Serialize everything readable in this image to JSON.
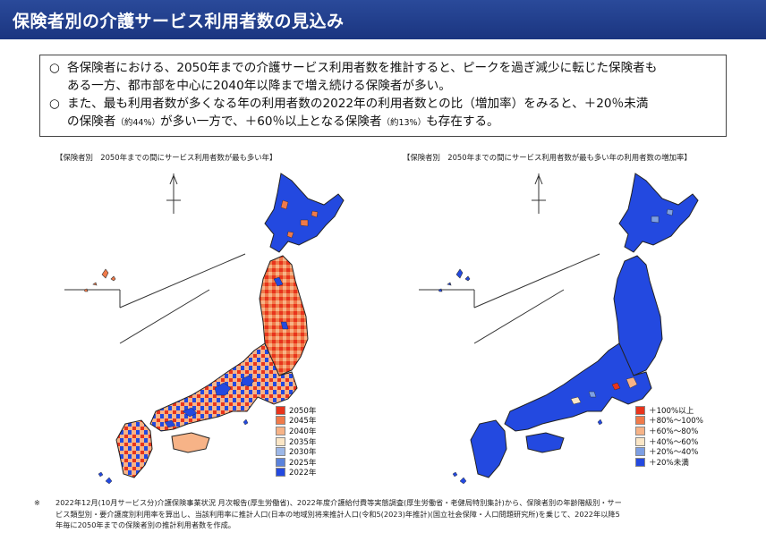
{
  "header": {
    "title": "保険者別の介護サービス利用者数の見込み"
  },
  "summary": {
    "bullet_mark": "○",
    "line1": "各保険者における、2050年までの介護サービス利用者数を推計すると、ピークを過ぎ減少に転じた保険者も",
    "line2": "ある一方、都市部を中心に2040年以降まで増え続ける保険者が多い。",
    "line3": "また、最も利用者数が多くなる年の利用者数の2022年の利用者数との比（増加率）をみると、＋20％未満",
    "line4_a": "の保険者",
    "line4_b": "（約44%）",
    "line4_c": "が多い一方で、＋60％以上となる保険者",
    "line4_d": "（約13%）",
    "line4_e": "も存在する。"
  },
  "left_map": {
    "title": "【保険者別　2050年までの間にサービス利用者数が最も多い年】",
    "legend": [
      {
        "label": "2050年",
        "color": "#e8341c"
      },
      {
        "label": "2045年",
        "color": "#f07a4a"
      },
      {
        "label": "2040年",
        "color": "#f7b387"
      },
      {
        "label": "2035年",
        "color": "#fbe6c6"
      },
      {
        "label": "2030年",
        "color": "#9db8e8"
      },
      {
        "label": "2025年",
        "color": "#5a82dc"
      },
      {
        "label": "2022年",
        "color": "#2349e0"
      }
    ]
  },
  "right_map": {
    "title": "【保険者別　2050年までの間にサービス利用者数が最も多い年の利用者数の増加率】",
    "legend": [
      {
        "label": "＋100%以上",
        "color": "#e8341c"
      },
      {
        "label": "＋80%～100%",
        "color": "#f07a4a"
      },
      {
        "label": "＋60%～80%",
        "color": "#f7b387"
      },
      {
        "label": "＋40%～60%",
        "color": "#fbe6c6"
      },
      {
        "label": "＋20%～40%",
        "color": "#7d9fe4"
      },
      {
        "label": "＋20%未満",
        "color": "#2349e0"
      }
    ]
  },
  "footnote": {
    "mark": "※",
    "line1": "2022年12月(10月サービス分)介護保険事業状況 月次報告(厚生労働省)、2022年度介護給付費等実態調査(厚生労働省・老健局特別集計)から、保険者別の年齢階級別・サー",
    "line2": "ビス類型別・要介護度別利用率を算出し、当該利用率に推計人口(日本の地域別将来推計人口(令和5(2023)年推計)(国立社会保障・人口問題研究所)を乗じて、2022年以降5",
    "line3": "年毎に2050年までの保険者別の推計利用者数を作成。"
  }
}
